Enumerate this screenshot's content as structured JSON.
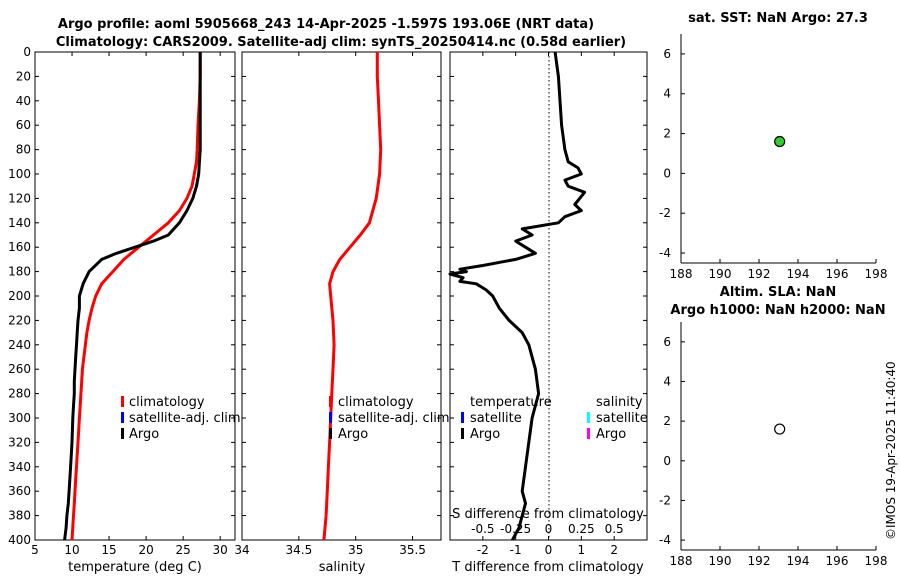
{
  "figure": {
    "title_line1": "Argo profile: aoml 5905668_243 14-Apr-2025 -1.597S 193.06E (NRT data)",
    "title_line2": "Climatology: CARS2009. Satellite-adj clim: synTS_20250414.nc (0.58d earlier)",
    "timestamp": "©IMOS 19-Apr-2025 11:40:40",
    "colors": {
      "climatology": "#ff0000",
      "satellite": "#0000ff",
      "argo": "#000000",
      "sal_satellite": "#00ffff",
      "sal_argo": "#ff00ff",
      "marker_fill": "#33cc33"
    }
  },
  "chart_data": [
    {
      "id": "temperature",
      "type": "line",
      "xlabel": "temperature (deg C)",
      "xlim": [
        5,
        32
      ],
      "xticks": [
        5,
        10,
        15,
        20,
        25,
        30
      ],
      "xticklabels": [
        "5",
        "10",
        "15",
        "20",
        "25",
        "30"
      ],
      "ylim": [
        0,
        400
      ],
      "yticks": [
        0,
        20,
        40,
        60,
        80,
        100,
        120,
        140,
        160,
        180,
        200,
        220,
        240,
        260,
        280,
        300,
        320,
        340,
        360,
        380,
        400
      ],
      "yticklabels": [
        "0",
        "20",
        "40",
        "60",
        "80",
        "100",
        "120",
        "140",
        "160",
        "180",
        "200",
        "220",
        "240",
        "260",
        "280",
        "300",
        "320",
        "340",
        "360",
        "380",
        "400"
      ],
      "legend": [
        "climatology",
        "satellite-adj. clim",
        "Argo"
      ],
      "series": [
        {
          "name": "climatology",
          "color": "#ff0000",
          "x": [
            27.3,
            27.3,
            27.2,
            27.0,
            26.9,
            26.8,
            26.5,
            26.2,
            25.5,
            24.5,
            23.0,
            21.0,
            19.0,
            17.0,
            15.5,
            14.0,
            13.2,
            12.7,
            12.3,
            12.0,
            11.8,
            11.6,
            11.4,
            11.3,
            11.2,
            11.1,
            11.0,
            10.9,
            10.8,
            10.7,
            10.6,
            10.5,
            10.4,
            10.3,
            10.2,
            10.0
          ],
          "y": [
            0,
            20,
            40,
            60,
            80,
            90,
            100,
            110,
            120,
            130,
            140,
            150,
            160,
            170,
            180,
            190,
            200,
            210,
            220,
            230,
            240,
            250,
            260,
            270,
            280,
            290,
            300,
            310,
            320,
            330,
            340,
            350,
            360,
            370,
            380,
            400
          ]
        },
        {
          "name": "Argo",
          "color": "#000000",
          "x": [
            27.3,
            27.3,
            27.3,
            27.3,
            27.3,
            27.2,
            27.1,
            26.8,
            26.3,
            25.5,
            24.5,
            23.0,
            21.0,
            18.5,
            16.0,
            14.0,
            12.3,
            11.5,
            11.0,
            11.0,
            10.8,
            10.7,
            10.6,
            10.5,
            10.4,
            10.3,
            10.3,
            10.2,
            10.1,
            10.0,
            9.8,
            9.6,
            9.5,
            9.3,
            9.2,
            9.0
          ],
          "y": [
            0,
            20,
            40,
            60,
            80,
            90,
            100,
            110,
            120,
            130,
            140,
            150,
            155,
            160,
            165,
            170,
            180,
            190,
            200,
            210,
            220,
            230,
            240,
            250,
            260,
            270,
            280,
            290,
            300,
            320,
            340,
            360,
            370,
            380,
            390,
            400
          ]
        }
      ]
    },
    {
      "id": "salinity",
      "type": "line",
      "xlabel": "salinity",
      "xlim": [
        34,
        35.75
      ],
      "xticks": [
        34,
        34.5,
        35,
        35.5
      ],
      "xticklabels": [
        "34",
        "34.5",
        "35",
        "35.5"
      ],
      "ylim": [
        0,
        400
      ],
      "legend": [
        "climatology",
        "satellite-adj. clim",
        "Argo"
      ],
      "series": [
        {
          "name": "climatology",
          "color": "#ff0000",
          "x": [
            35.19,
            35.19,
            35.2,
            35.21,
            35.22,
            35.21,
            35.18,
            35.12,
            35.04,
            34.95,
            34.86,
            34.8,
            34.77,
            34.78,
            34.8,
            34.81,
            34.8,
            34.79,
            34.78,
            34.77,
            34.76,
            34.75,
            34.74,
            34.72
          ],
          "y": [
            0,
            20,
            40,
            60,
            80,
            100,
            120,
            140,
            150,
            160,
            170,
            180,
            190,
            200,
            220,
            240,
            260,
            280,
            300,
            320,
            340,
            360,
            380,
            400
          ]
        }
      ]
    },
    {
      "id": "difference",
      "type": "line",
      "xlabel": "T difference from climatology",
      "xlabel_top": "S difference from climatology",
      "xlim": [
        -3,
        3
      ],
      "xticks": [
        -2,
        -1,
        0,
        1,
        2
      ],
      "xticklabels": [
        "-2",
        "-1",
        "0",
        "1",
        "2"
      ],
      "top_ticklabels": [
        "-0.5",
        "-0.25",
        "0",
        "0.25",
        "0.5"
      ],
      "ylim": [
        0,
        400
      ],
      "legend_temperature_title": "temperature",
      "legend_salinity_title": "salinity",
      "legend_temperature": [
        "satellite",
        "Argo"
      ],
      "legend_salinity": [
        "satellite",
        "Argo"
      ],
      "series": [
        {
          "name": "Argo T - clim",
          "color": "#000000",
          "x": [
            0.2,
            0.3,
            0.35,
            0.4,
            0.5,
            0.6,
            0.9,
            1.0,
            0.5,
            0.6,
            1.1,
            0.8,
            1.0,
            0.5,
            0.3,
            -0.8,
            -0.5,
            -1.0,
            -0.7,
            -0.4,
            -1.0,
            -1.4,
            -2.0,
            -2.7,
            -2.5,
            -3.0,
            -2.6,
            -2.7,
            -2.2,
            -1.9,
            -1.7,
            -1.5,
            -1.2,
            -0.8,
            -0.6,
            -0.4,
            -0.3,
            -0.5,
            -0.6,
            -0.7,
            -0.8,
            -0.7,
            -0.8,
            -0.9,
            -1.0,
            -1.1
          ],
          "y": [
            0,
            20,
            40,
            60,
            80,
            90,
            95,
            100,
            105,
            110,
            115,
            125,
            130,
            135,
            140,
            145,
            150,
            155,
            160,
            165,
            170,
            172,
            175,
            178,
            180,
            182,
            185,
            188,
            190,
            195,
            200,
            210,
            220,
            230,
            240,
            260,
            280,
            300,
            320,
            340,
            360,
            370,
            380,
            390,
            395,
            400
          ]
        }
      ]
    },
    {
      "id": "sst",
      "type": "scatter",
      "title": "sat. SST: NaN Argo: 27.3",
      "xlim": [
        188,
        198
      ],
      "xticks": [
        188,
        190,
        192,
        194,
        196,
        198
      ],
      "xticklabels": [
        "188",
        "190",
        "192",
        "194",
        "196",
        "198"
      ],
      "ylim": [
        -4.5,
        7
      ],
      "yticks": [
        -4,
        -2,
        0,
        2,
        4,
        6
      ],
      "yticklabels": [
        "-4",
        "-2",
        "0",
        "2",
        "4",
        "6"
      ],
      "points": [
        {
          "x": 193.06,
          "y": 1.6,
          "fill": "#33cc33"
        }
      ]
    },
    {
      "id": "sla",
      "type": "scatter",
      "title_line1": "Altim. SLA: NaN",
      "title_line2": "Argo h1000: NaN h2000: NaN",
      "xlim": [
        188,
        198
      ],
      "xticks": [
        188,
        190,
        192,
        194,
        196,
        198
      ],
      "xticklabels": [
        "188",
        "190",
        "192",
        "194",
        "196",
        "198"
      ],
      "ylim": [
        -4.5,
        7
      ],
      "yticks": [
        -4,
        -2,
        0,
        2,
        4,
        6
      ],
      "yticklabels": [
        "-4",
        "-2",
        "0",
        "2",
        "4",
        "6"
      ],
      "points": [
        {
          "x": 193.06,
          "y": 1.6,
          "fill": "#ffffff"
        }
      ]
    }
  ]
}
